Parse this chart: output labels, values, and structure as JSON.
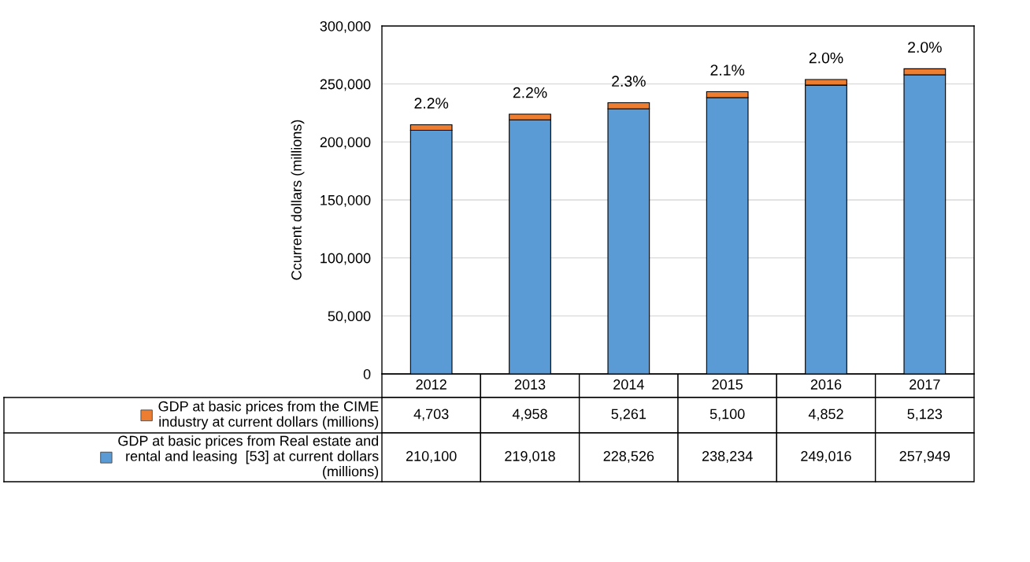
{
  "chart_data": {
    "type": "bar",
    "stacked": true,
    "ylabel": "Ccurrent dollars (millions)",
    "categories": [
      "2012",
      "2013",
      "2014",
      "2015",
      "2016",
      "2017"
    ],
    "series": [
      {
        "name": "GDP at basic prices from Real estate and\nrental and leasing  [53] at current dollars\n(millions)",
        "color": "#5b9bd5",
        "values": [
          210100,
          219018,
          228526,
          238234,
          249016,
          257949
        ],
        "value_labels": [
          "210,100",
          "219,018",
          "228,526",
          "238,234",
          "249,016",
          "257,949"
        ]
      },
      {
        "name": "GDP at basic prices from the CIME\nindustry at current dollars (millions)",
        "color": "#ed7d31",
        "values": [
          4703,
          4958,
          5261,
          5100,
          4852,
          5123
        ],
        "value_labels": [
          "4,703",
          "4,958",
          "5,261",
          "5,100",
          "4,852",
          "5,123"
        ]
      }
    ],
    "ylim": [
      0,
      300000
    ],
    "yticks": [
      0,
      {
        "value": 50000,
        "label": "50,000"
      },
      {
        "value": 100000,
        "label": "100,000"
      },
      {
        "value": 150000,
        "label": "150,000"
      },
      {
        "value": 200000,
        "label": "200,000"
      },
      {
        "value": 250000,
        "label": "250,000"
      },
      {
        "value": 300000,
        "label": "300,000"
      }
    ],
    "grid": "y",
    "legend": "bottom",
    "annotations": [
      {
        "text": "2.2%",
        "x": "2012",
        "y": 214803
      },
      {
        "text": "2.2%",
        "x": "2013",
        "y": 223976
      },
      {
        "text": "2.3%",
        "x": "2014",
        "y": 233787
      },
      {
        "text": "2.1%",
        "x": "2015",
        "y": 243334
      },
      {
        "text": "2.0%",
        "x": "2016",
        "y": 253868
      },
      {
        "text": "2.0%",
        "x": "2017",
        "y": 263072
      }
    ]
  }
}
